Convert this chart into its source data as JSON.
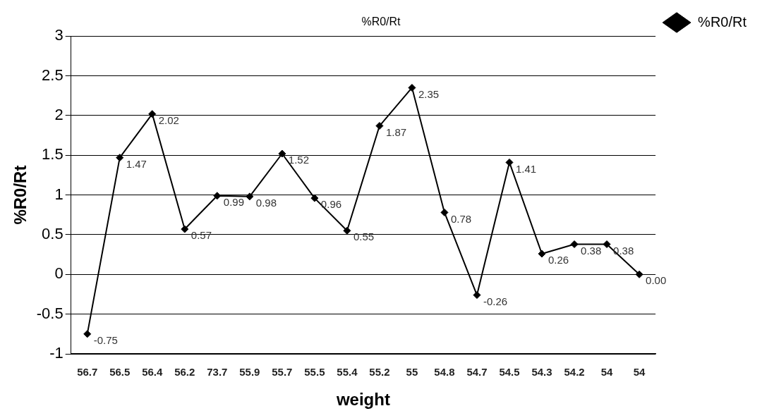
{
  "chart_data": {
    "type": "line",
    "title": "%R0/Rt",
    "xlabel": "weight",
    "ylabel": "%R0/Rt",
    "categories": [
      "56.7",
      "56.5",
      "56.4",
      "56.2",
      "73.7",
      "55.9",
      "55.7",
      "55.5",
      "55.4",
      "55.2",
      "55",
      "54.8",
      "54.7",
      "54.5",
      "54.3",
      "54.2",
      "54",
      "54"
    ],
    "series": [
      {
        "name": "%R0/Rt",
        "color": "#000000",
        "values": [
          -0.75,
          1.47,
          2.02,
          0.57,
          0.99,
          0.98,
          1.52,
          0.96,
          0.55,
          1.87,
          2.35,
          0.78,
          -0.26,
          1.41,
          0.26,
          0.38,
          0.38,
          0.0
        ],
        "value_labels": [
          "-0.75",
          "1.47",
          "2.02",
          "0.57",
          "0.99",
          "0.98",
          "1.52",
          "0.96",
          "0.55",
          "1.87",
          "2.35",
          "0.78",
          "-0.26",
          "1.41",
          "0.26",
          "0.38",
          "0.38",
          "0.00"
        ]
      }
    ],
    "ylim": [
      -1,
      3
    ],
    "yticks": [
      -1,
      -0.5,
      0,
      0.5,
      1,
      1.5,
      2,
      2.5,
      3
    ],
    "grid": "y",
    "legend": "right",
    "marker": "diamond",
    "line_style": "solid"
  }
}
